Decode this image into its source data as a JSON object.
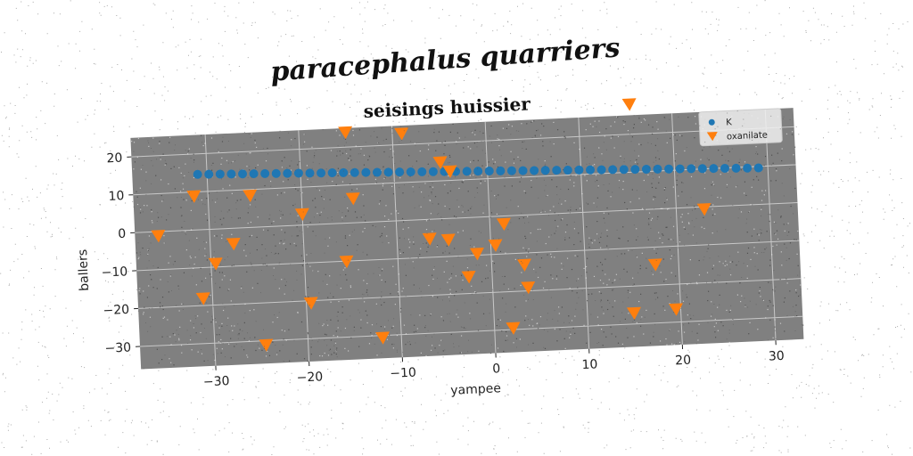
{
  "chart_data": {
    "type": "scatter",
    "suptitle": "paracephalus quarriers",
    "title": "seisings huissier",
    "xlabel": "yampee",
    "ylabel": "ballers",
    "xlim": [
      -38,
      33
    ],
    "ylim": [
      -36,
      25
    ],
    "xticks": [
      -30,
      -20,
      -10,
      0,
      10,
      20,
      30
    ],
    "xtick_labels": [
      "−30",
      "−20",
      "−10",
      "0",
      "10",
      "20",
      "30"
    ],
    "yticks": [
      -30,
      -20,
      -10,
      0,
      10,
      20
    ],
    "ytick_labels": [
      "−30",
      "−20",
      "−10",
      "0",
      "10",
      "20"
    ],
    "grid": true,
    "legend_position": "top-right",
    "background": "#808080",
    "series": [
      {
        "name": "K",
        "marker": "circle",
        "color": "#1f77b4",
        "x": [
          -31.0,
          -29.8,
          -28.6,
          -27.4,
          -26.2,
          -25.0,
          -23.8,
          -22.6,
          -21.4,
          -20.2,
          -19.0,
          -17.8,
          -16.6,
          -15.4,
          -14.2,
          -13.0,
          -11.8,
          -10.6,
          -9.4,
          -8.2,
          -7.0,
          -5.8,
          -4.6,
          -3.4,
          -2.2,
          -1.0,
          0.2,
          1.4,
          2.6,
          3.8,
          5.0,
          6.2,
          7.4,
          8.6,
          9.8,
          11.0,
          12.2,
          13.4,
          14.6,
          15.8,
          17.0,
          18.2,
          19.4,
          20.6,
          21.8,
          23.0,
          24.2,
          25.4,
          26.6,
          27.8,
          29.0
        ],
        "y": [
          14.6,
          14.5,
          14.4,
          14.3,
          14.2,
          14.1,
          14.0,
          13.9,
          13.8,
          13.7,
          13.6,
          13.5,
          13.4,
          13.3,
          13.2,
          13.1,
          13.0,
          12.9,
          12.8,
          12.7,
          12.6,
          12.5,
          12.4,
          12.3,
          12.2,
          12.1,
          12.0,
          11.9,
          11.8,
          11.7,
          11.6,
          11.5,
          11.4,
          11.3,
          11.2,
          11.1,
          11.0,
          10.9,
          10.8,
          10.7,
          10.6,
          10.5,
          10.4,
          10.3,
          10.2,
          10.1,
          10.0,
          9.9,
          9.8,
          9.7,
          9.6
        ]
      },
      {
        "name": "oxanilate",
        "marker": "triangle-down",
        "color": "#ff7f0e",
        "x": [
          -35.5,
          -31.5,
          -31.0,
          -29.5,
          -27.5,
          -25.5,
          -24.5,
          -20.0,
          -19.5,
          -15.5,
          -15.0,
          -14.5,
          -12.0,
          -9.0,
          -6.5,
          -5.0,
          -4.5,
          -4.0,
          -2.5,
          -1.5,
          0.5,
          1.5,
          2.0,
          3.5,
          3.8,
          15.0,
          15.5,
          17.5,
          19.5,
          23.0
        ],
        "y": [
          -1.0,
          9.0,
          -18.0,
          -9.0,
          -4.0,
          8.5,
          -31.0,
          3.0,
          -20.5,
          -10.0,
          24.0,
          6.5,
          -30.5,
          23.0,
          -5.0,
          15.0,
          -5.5,
          12.5,
          -15.5,
          -9.5,
          -7.5,
          -2.0,
          -29.5,
          -13.0,
          -19.0,
          -27.0,
          28.0,
          -14.5,
          -26.5,
          -0.5
        ]
      }
    ]
  }
}
